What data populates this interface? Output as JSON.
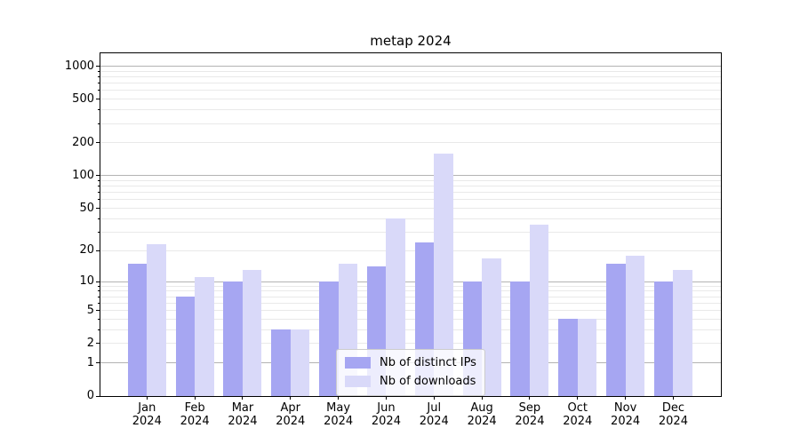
{
  "title": "metap 2024",
  "legend": {
    "items": [
      {
        "label": "Nb of distinct IPs",
        "series_key": "ips"
      },
      {
        "label": "Nb of downloads",
        "series_key": "downloads"
      }
    ]
  },
  "colors": {
    "ips_bar": "#a6a6f2",
    "downloads_bar": "#d9d9f9",
    "grid_major": "#b3b3b3",
    "grid_minor": "#e9e9e9",
    "axis": "#000000",
    "legend_border": "#cccccc"
  },
  "chart_data": {
    "type": "bar",
    "title": "metap 2024",
    "xlabel": "",
    "ylabel": "",
    "yscale": "log10(value+1)",
    "ylim": [
      0,
      1320
    ],
    "grid": "both",
    "legend_position": "inside lower-center",
    "yticks": [
      0,
      1,
      2,
      5,
      10,
      20,
      50,
      100,
      200,
      500,
      1000
    ],
    "ytick_labels": [
      "0",
      "1",
      "2",
      "5",
      "10",
      "20",
      "50",
      "100",
      "200",
      "500",
      "1000"
    ],
    "minor_gridlines": [
      2,
      3,
      4,
      5,
      6,
      7,
      8,
      9,
      20,
      30,
      40,
      50,
      60,
      70,
      80,
      90,
      200,
      300,
      400,
      500,
      600,
      700,
      800,
      900
    ],
    "major_gridlines": [
      1,
      10,
      100,
      1000
    ],
    "categories": [
      "Jan",
      "Feb",
      "Mar",
      "Apr",
      "May",
      "Jun",
      "Jul",
      "Aug",
      "Sep",
      "Oct",
      "Nov",
      "Dec"
    ],
    "category_year": "2024",
    "series": [
      {
        "name": "Nb of distinct IPs",
        "key": "ips",
        "values": [
          15,
          7,
          10,
          3,
          10,
          14,
          24,
          10,
          10,
          4,
          15,
          10
        ]
      },
      {
        "name": "Nb of downloads",
        "key": "downloads",
        "values": [
          23,
          11,
          13,
          3,
          15,
          40,
          160,
          17,
          35,
          4,
          18,
          13
        ]
      }
    ]
  }
}
